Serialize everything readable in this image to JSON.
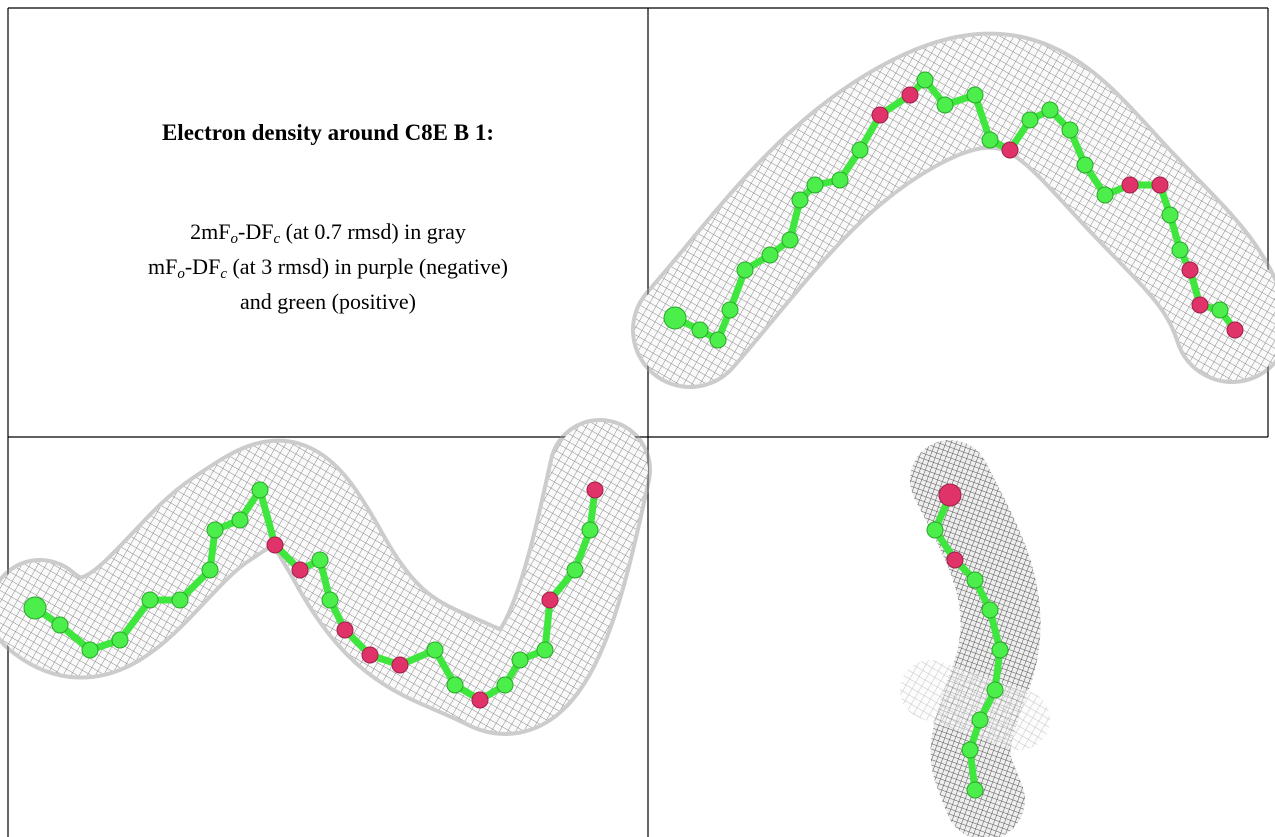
{
  "legend": {
    "title": "Electron density around C8E B 1:",
    "lines": [
      {
        "parts": [
          "2mF",
          "o",
          "-DF",
          "c",
          " (at 0.7 rmsd) in gray"
        ]
      },
      {
        "parts": [
          "mF",
          "o",
          "-DF",
          "c",
          " (at 3 rmsd) in purple (negative)"
        ]
      },
      {
        "parts": [
          "and green (positive)"
        ]
      }
    ]
  }
}
